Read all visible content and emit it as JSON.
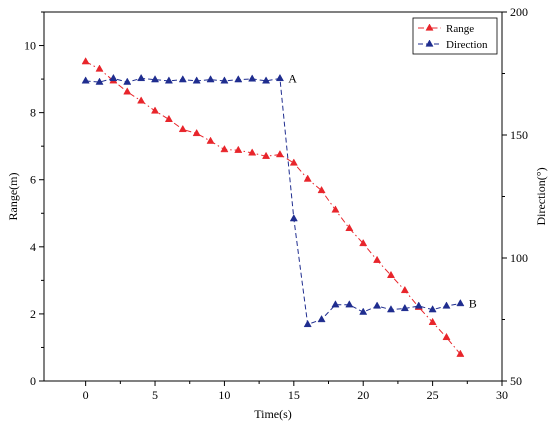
{
  "chart_data": {
    "type": "line",
    "xlabel": "Time(s)",
    "ylabel_left": "Range(m)",
    "ylabel_right": "Direction(°)",
    "xlim": [
      -3,
      30
    ],
    "ylim_left": [
      0,
      11
    ],
    "ylim_right": [
      50,
      200
    ],
    "xticks": [
      0,
      5,
      10,
      15,
      20,
      25,
      30
    ],
    "yticks_left": [
      0,
      2,
      4,
      6,
      8,
      10
    ],
    "yticks_right": [
      50,
      100,
      150,
      200
    ],
    "grid": false,
    "legend_position": "top-right",
    "series": [
      {
        "name": "Range",
        "axis": "left",
        "color": "#e8252b",
        "marker": "triangle",
        "line_style": "dash-dot",
        "x": [
          0,
          1,
          2,
          3,
          4,
          5,
          6,
          7,
          8,
          9,
          10,
          11,
          12,
          13,
          14,
          15,
          16,
          17,
          18,
          19,
          20,
          21,
          22,
          23,
          24,
          25,
          26,
          27
        ],
        "y": [
          9.52,
          9.3,
          8.95,
          8.62,
          8.35,
          8.05,
          7.8,
          7.5,
          7.38,
          7.15,
          6.9,
          6.88,
          6.8,
          6.7,
          6.75,
          6.5,
          6.02,
          5.68,
          5.1,
          4.55,
          4.1,
          3.6,
          3.15,
          2.7,
          2.2,
          1.75,
          1.3,
          0.8
        ]
      },
      {
        "name": "Direction",
        "axis": "right",
        "color": "#1f2d8f",
        "marker": "triangle",
        "line_style": "dashed",
        "x": [
          0,
          1,
          2,
          3,
          4,
          5,
          6,
          7,
          8,
          9,
          10,
          11,
          12,
          13,
          14,
          15,
          16,
          17,
          18,
          19,
          20,
          21,
          22,
          23,
          24,
          25,
          26,
          27
        ],
        "y": [
          172,
          171.5,
          173,
          171.5,
          173,
          172.5,
          172,
          172.5,
          172,
          172.5,
          172,
          172.5,
          172.8,
          172,
          173,
          116,
          73,
          75,
          81,
          81,
          78,
          80.5,
          79,
          79.5,
          80.5,
          79,
          80.5,
          81.5
        ]
      }
    ],
    "annotations": [
      {
        "text": "A",
        "x": 14.6,
        "y": 173,
        "axis": "right"
      },
      {
        "text": "B",
        "x": 27.6,
        "y": 81.5,
        "axis": "right"
      }
    ]
  }
}
